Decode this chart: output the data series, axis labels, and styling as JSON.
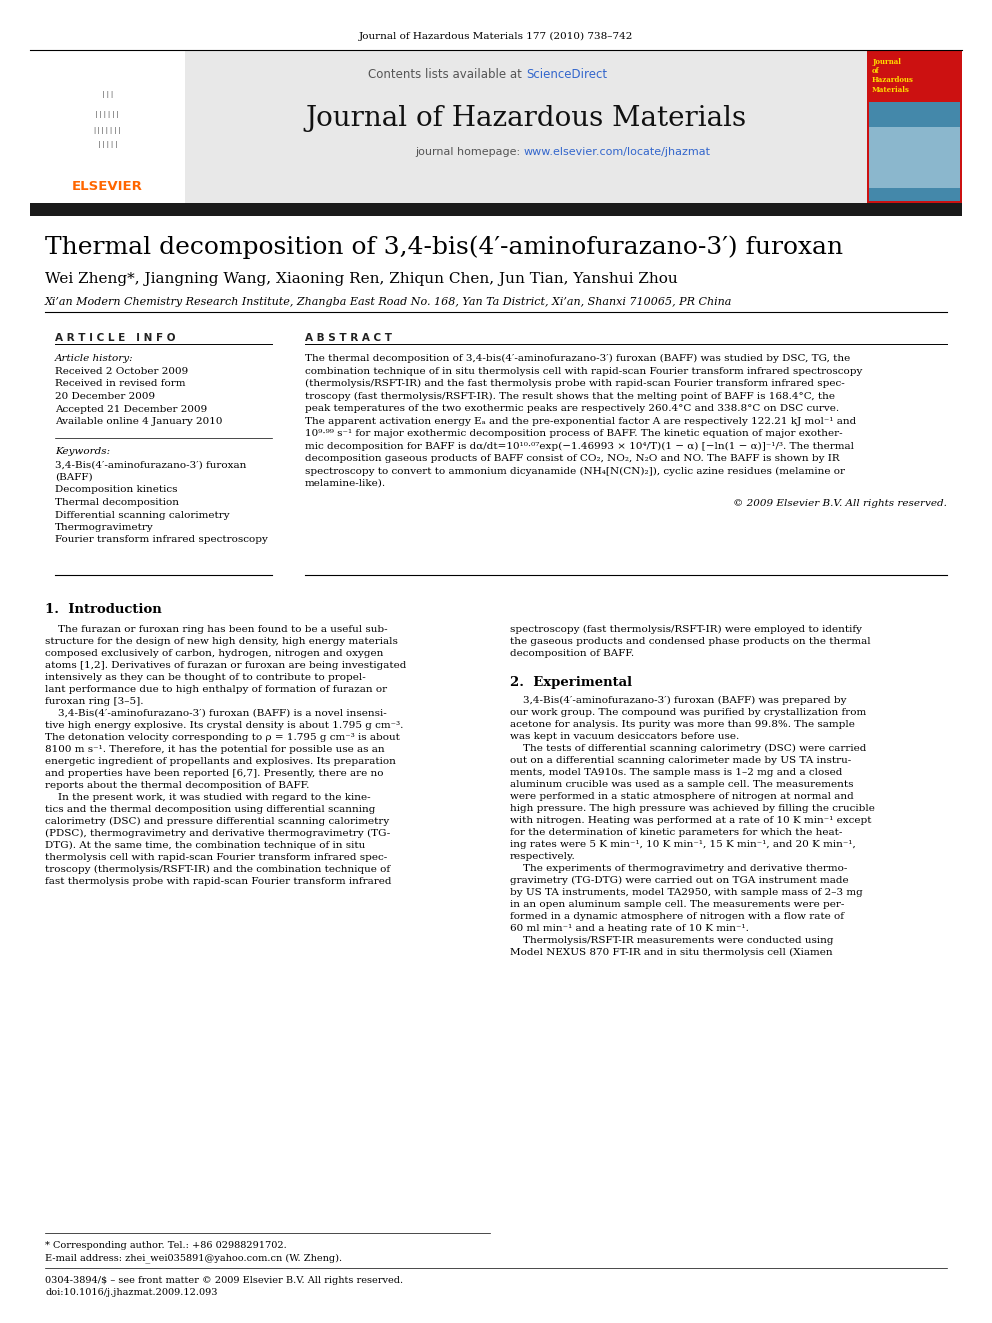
{
  "journal_header": "Journal of Hazardous Materials 177 (2010) 738–742",
  "contents_lists": "Contents lists available at ",
  "science_direct": "ScienceDirect",
  "journal_name": "Journal of Hazardous Materials",
  "journal_homepage_prefix": "journal homepage: ",
  "journal_homepage_link": "www.elsevier.com/locate/jhazmat",
  "title": "Thermal decomposition of 3,4-bis(4′-aminofurazano-3′) furoxan",
  "authors": "Wei Zheng*, Jiangning Wang, Xiaoning Ren, Zhiqun Chen, Jun Tian, Yanshui Zhou",
  "affiliation": "Xi’an Modern Chemistry Research Institute, Zhangba East Road No. 168, Yan Ta District, Xi’an, Shanxi 710065, PR China",
  "article_info_header": "A R T I C L E   I N F O",
  "abstract_header": "A B S T R A C T",
  "article_history_label": "Article history:",
  "received": "Received 2 October 2009",
  "received_revised": "Received in revised form",
  "revised_date": "20 December 2009",
  "accepted": "Accepted 21 December 2009",
  "available": "Available online 4 January 2010",
  "keywords_label": "Keywords:",
  "keyword1": "3,4-Bis(4′-aminofurazano-3′) furoxan",
  "keyword2": "(BAFF)",
  "keyword3": "Decomposition kinetics",
  "keyword4": "Thermal decomposition",
  "keyword5": "Differential scanning calorimetry",
  "keyword6": "Thermogravimetry",
  "keyword7": "Fourier transform infrared spectroscopy",
  "abstract_lines": [
    "The thermal decomposition of 3,4-bis(4′-aminofurazano-3′) furoxan (BAFF) was studied by DSC, TG, the",
    "combination technique of in situ thermolysis cell with rapid-scan Fourier transform infrared spectroscopy",
    "(thermolysis/RSFT-IR) and the fast thermolysis probe with rapid-scan Fourier transform infrared spec-",
    "troscopy (fast thermolysis/RSFT-IR). The result shows that the melting point of BAFF is 168.4°C, the",
    "peak temperatures of the two exothermic peaks are respectively 260.4°C and 338.8°C on DSC curve.",
    "The apparent activation energy Eₐ and the pre-exponential factor A are respectively 122.21 kJ mol⁻¹ and",
    "10⁹·⁹⁹ s⁻¹ for major exothermic decomposition process of BAFF. The kinetic equation of major exother-",
    "mic decomposition for BAFF is dα/dt=10¹⁰·⁰⁷exp(−1.46993 × 10⁴/T)(1 − α) [−ln(1 − α)]⁻¹/³. The thermal",
    "decomposition gaseous products of BAFF consist of CO₂, NO₂, N₂O and NO. The BAFF is shown by IR",
    "spectroscopy to convert to ammonium dicyanamide (NH₄[N(CN)₂]), cyclic azine residues (melamine or",
    "melamine-like)."
  ],
  "copyright": "© 2009 Elsevier B.V. All rights reserved.",
  "section1_header": "1.  Introduction",
  "intro_col1_lines": [
    "    The furazan or furoxan ring has been found to be a useful sub-",
    "structure for the design of new high density, high energy materials",
    "composed exclusively of carbon, hydrogen, nitrogen and oxygen",
    "atoms [1,2]. Derivatives of furazan or furoxan are being investigated",
    "intensively as they can be thought of to contribute to propel-",
    "lant performance due to high enthalpy of formation of furazan or",
    "furoxan ring [3–5].",
    "    3,4-Bis(4′-aminofurazano-3′) furoxan (BAFF) is a novel insensi-",
    "tive high energy explosive. Its crystal density is about 1.795 g cm⁻³.",
    "The detonation velocity corresponding to ρ = 1.795 g cm⁻³ is about",
    "8100 m s⁻¹. Therefore, it has the potential for possible use as an",
    "energetic ingredient of propellants and explosives. Its preparation",
    "and properties have been reported [6,7]. Presently, there are no",
    "reports about the thermal decomposition of BAFF.",
    "    In the present work, it was studied with regard to the kine-",
    "tics and the thermal decomposition using differential scanning",
    "calorimetry (DSC) and pressure differential scanning calorimetry",
    "(PDSC), thermogravimetry and derivative thermogravimetry (TG-",
    "DTG). At the same time, the combination technique of in situ",
    "thermolysis cell with rapid-scan Fourier transform infrared spec-",
    "troscopy (thermolysis/RSFT-IR) and the combination technique of",
    "fast thermolysis probe with rapid-scan Fourier transform infrared"
  ],
  "intro_col2_lines": [
    "spectroscopy (fast thermolysis/RSFT-IR) were employed to identify",
    "the gaseous products and condensed phase products on the thermal",
    "decomposition of BAFF."
  ],
  "section2_header": "2.  Experimental",
  "exp_col2_lines": [
    "    3,4-Bis(4′-aminofurazano-3′) furoxan (BAFF) was prepared by",
    "our work group. The compound was purified by crystallization from",
    "acetone for analysis. Its purity was more than 99.8%. The sample",
    "was kept in vacuum desiccators before use.",
    "    The tests of differential scanning calorimetry (DSC) were carried",
    "out on a differential scanning calorimeter made by US TA instru-",
    "ments, model TA910s. The sample mass is 1–2 mg and a closed",
    "aluminum crucible was used as a sample cell. The measurements",
    "were performed in a static atmosphere of nitrogen at normal and",
    "high pressure. The high pressure was achieved by filling the crucible",
    "with nitrogen. Heating was performed at a rate of 10 K min⁻¹ except",
    "for the determination of kinetic parameters for which the heat-",
    "ing rates were 5 K min⁻¹, 10 K min⁻¹, 15 K min⁻¹, and 20 K min⁻¹,",
    "respectively.",
    "    The experiments of thermogravimetry and derivative thermo-",
    "gravimetry (TG-DTG) were carried out on TGA instrument made",
    "by US TA instruments, model TA2950, with sample mass of 2–3 mg",
    "in an open aluminum sample cell. The measurements were per-",
    "formed in a dynamic atmosphere of nitrogen with a flow rate of",
    "60 ml min⁻¹ and a heating rate of 10 K min⁻¹.",
    "    Thermolysis/RSFT-IR measurements were conducted using",
    "Model NEXUS 870 FT-IR and in situ thermolysis cell (Xiamen"
  ],
  "footer_note": "* Corresponding author. Tel.: +86 02988291702.",
  "footer_email": "E-mail address: zhei_wei035891@yahoo.com.cn (W. Zheng).",
  "footer_issn": "0304-3894/$ – see front matter © 2009 Elsevier B.V. All rights reserved.",
  "footer_doi": "doi:10.1016/j.jhazmat.2009.12.093",
  "header_bg": "#e8e8e8",
  "black_bar_color": "#1a1a1a",
  "science_direct_color": "#3366cc",
  "link_color": "#3366cc",
  "elsevier_color": "#ff6600"
}
